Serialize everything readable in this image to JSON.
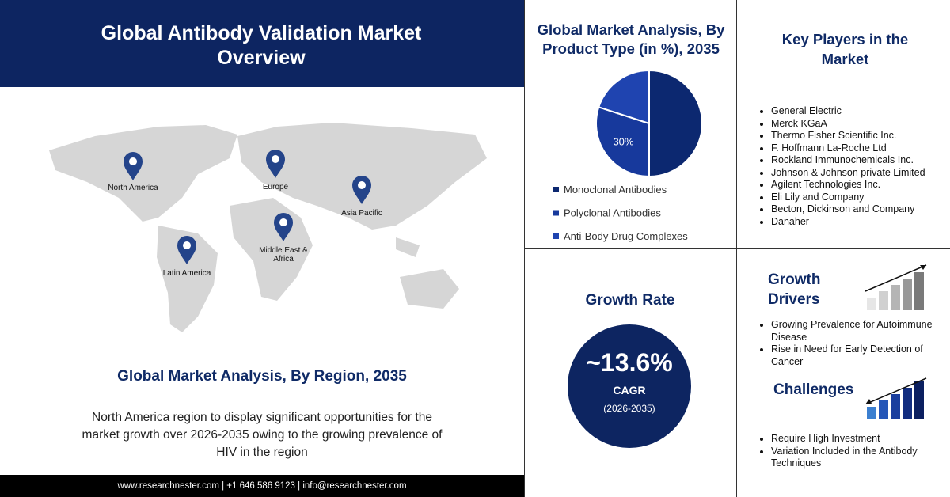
{
  "header": {
    "title": "Global Antibody Validation Market Overview"
  },
  "regions": {
    "labels": [
      "North America",
      "Europe",
      "Asia Pacific",
      "Middle East & Africa",
      "Latin America"
    ],
    "title": "Global Market Analysis, By Region, 2035",
    "description": "North America region to display significant opportunities for the market growth over 2026-2035 owing to the  growing prevalence of HIV in the region"
  },
  "footer": {
    "text": "www.researchnester.com | +1 646 586 9123 | info@researchnester.com"
  },
  "chart_data": {
    "type": "pie",
    "title": "Global Market Analysis, By Product Type (in %), 2035",
    "categories": [
      "Monoclonal Antibodies",
      "Polyclonal Antibodies",
      "Anti-Body Drug Complexes"
    ],
    "values": [
      50,
      30,
      20
    ],
    "value_labels": [
      null,
      "30%",
      null
    ],
    "colors": [
      "#0c2870",
      "#17399c",
      "#1f44b0"
    ]
  },
  "key_players": {
    "title": "Key Players in the Market",
    "items": [
      "General Electric",
      "Merck KGaA",
      "Thermo Fisher Scientific Inc.",
      "F. Hoffmann La-Roche Ltd",
      "Rockland Immunochemicals Inc.",
      "Johnson & Johnson private Limited",
      "Agilent Technologies Inc.",
      "Eli Lily and Company",
      "Becton, Dickinson and Company",
      "Danaher"
    ]
  },
  "growth_rate": {
    "title": "Growth Rate",
    "value": "~13.6%",
    "label": "CAGR",
    "period": "(2026-2035)"
  },
  "growth_drivers": {
    "title": "Growth Drivers",
    "items": [
      "Growing Prevalence for Autoimmune Disease",
      "Rise in Need for Early Detection of Cancer"
    ]
  },
  "challenges": {
    "title": "Challenges",
    "items": [
      "Require High Investment",
      "Variation Included in the Antibody Techniques"
    ]
  }
}
